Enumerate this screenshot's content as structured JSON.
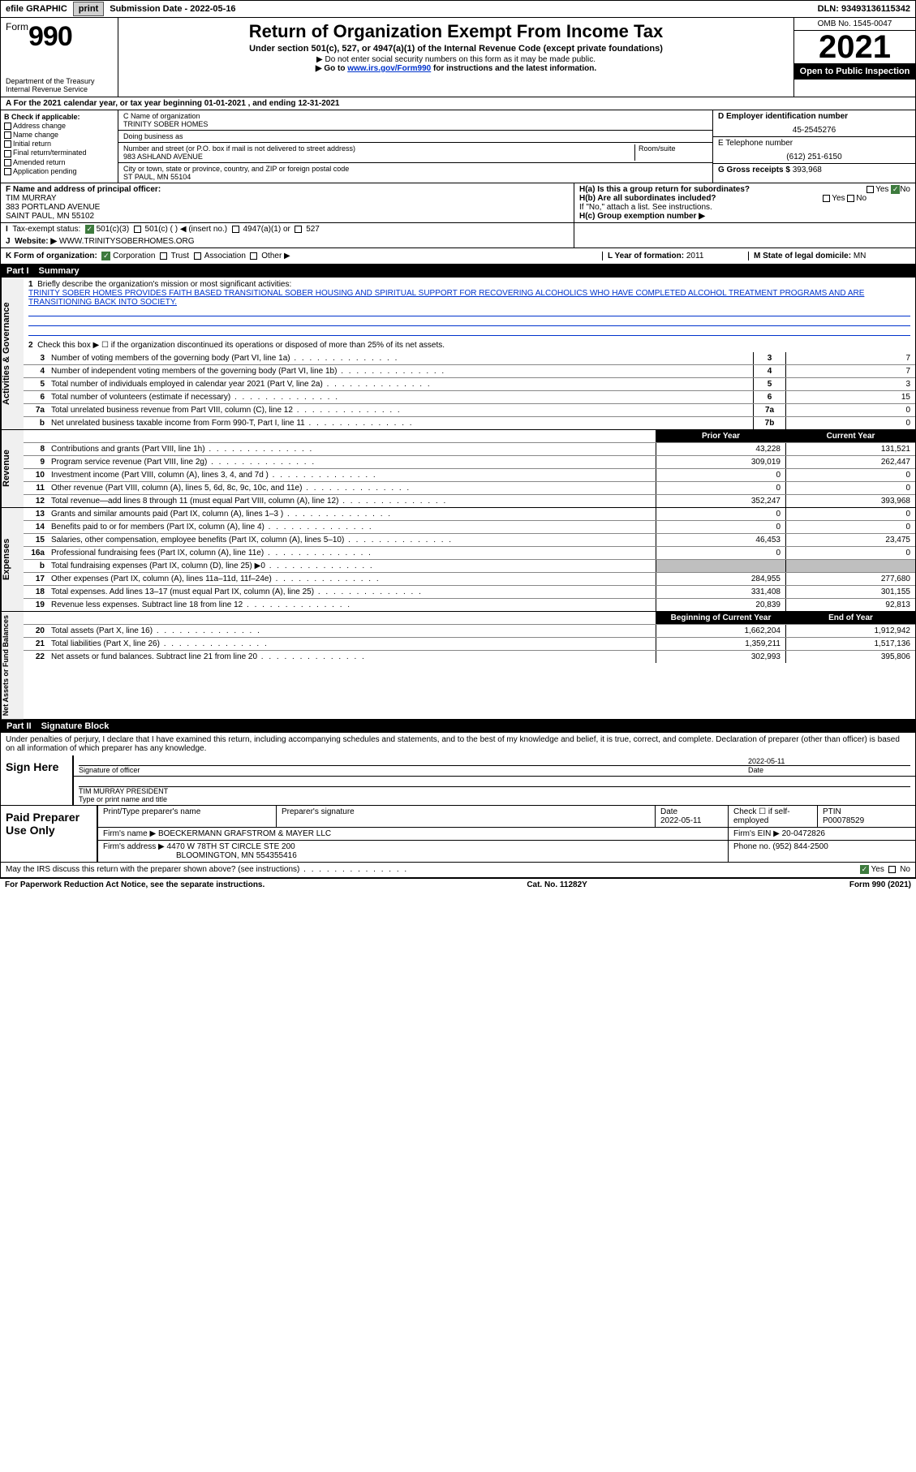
{
  "topbar": {
    "efile": "efile GRAPHIC",
    "print": "print",
    "subdate_lbl": "Submission Date - ",
    "subdate": "2022-05-16",
    "dln_lbl": "DLN: ",
    "dln": "93493136115342"
  },
  "header": {
    "form_word": "Form",
    "form_num": "990",
    "dept": "Department of the Treasury Internal Revenue Service",
    "title": "Return of Organization Exempt From Income Tax",
    "sub": "Under section 501(c), 527, or 4947(a)(1) of the Internal Revenue Code (except private foundations)",
    "note1": "▶ Do not enter social security numbers on this form as it may be made public.",
    "note2_pre": "▶ Go to ",
    "note2_link": "www.irs.gov/Form990",
    "note2_post": " for instructions and the latest information.",
    "omb": "OMB No. 1545-0047",
    "year": "2021",
    "open": "Open to Public Inspection"
  },
  "A": {
    "text": "A For the 2021 calendar year, or tax year beginning 01-01-2021   , and ending 12-31-2021"
  },
  "B": {
    "hdr": "B Check if applicable:",
    "opts": [
      "Address change",
      "Name change",
      "Initial return",
      "Final return/terminated",
      "Amended return",
      "Application pending"
    ]
  },
  "C": {
    "name_lbl": "C Name of organization",
    "name": "TRINITY SOBER HOMES",
    "dba_lbl": "Doing business as",
    "addr_lbl": "Number and street (or P.O. box if mail is not delivered to street address)",
    "room_lbl": "Room/suite",
    "addr": "983 ASHLAND AVENUE",
    "city_lbl": "City or town, state or province, country, and ZIP or foreign postal code",
    "city": "ST PAUL, MN  55104"
  },
  "DEG": {
    "d_lbl": "D Employer identification number",
    "d": "45-2545276",
    "e_lbl": "E Telephone number",
    "e": "(612) 251-6150",
    "g_lbl": "G Gross receipts $ ",
    "g": "393,968"
  },
  "F": {
    "lbl": "F Name and address of principal officer:",
    "name": "TIM MURRAY",
    "addr1": "383 PORTLAND AVENUE",
    "addr2": "SAINT PAUL, MN  55102"
  },
  "H": {
    "a": "H(a)  Is this a group return for subordinates?",
    "b": "H(b)  Are all subordinates included?",
    "bnote": "If \"No,\" attach a list. See instructions.",
    "c": "H(c)  Group exemption number ▶",
    "yes": "Yes",
    "no": "No"
  },
  "I": {
    "lbl": "Tax-exempt status:",
    "o1": "501(c)(3)",
    "o2": "501(c) (   ) ◀ (insert no.)",
    "o3": "4947(a)(1) or",
    "o4": "527"
  },
  "J": {
    "lbl": "Website: ▶",
    "val": "WWW.TRINITYSOBERHOMES.ORG"
  },
  "K": {
    "lbl": "K Form of organization:",
    "opts": [
      "Corporation",
      "Trust",
      "Association",
      "Other ▶"
    ],
    "L_lbl": "L Year of formation: ",
    "L_val": "2011",
    "M_lbl": "M State of legal domicile: ",
    "M_val": "MN"
  },
  "partI": {
    "hdr": "Part I",
    "title": "Summary",
    "l1_lbl": "Briefly describe the organization's mission or most significant activities:",
    "l1_text": "TRINITY SOBER HOMES PROVIDES FAITH BASED TRANSITIONAL SOBER HOUSING AND SPIRITUAL SUPPORT FOR RECOVERING ALCOHOLICS WHO HAVE COMPLETED ALCOHOL TREATMENT PROGRAMS AND ARE TRANSITIONING BACK INTO SOCIETY.",
    "l2": "Check this box ▶ ☐ if the organization discontinued its operations or disposed of more than 25% of its net assets.",
    "gov_lines": [
      {
        "n": "3",
        "t": "Number of voting members of the governing body (Part VI, line 1a)",
        "b": "3",
        "v": "7"
      },
      {
        "n": "4",
        "t": "Number of independent voting members of the governing body (Part VI, line 1b)",
        "b": "4",
        "v": "7"
      },
      {
        "n": "5",
        "t": "Total number of individuals employed in calendar year 2021 (Part V, line 2a)",
        "b": "5",
        "v": "3"
      },
      {
        "n": "6",
        "t": "Total number of volunteers (estimate if necessary)",
        "b": "6",
        "v": "15"
      },
      {
        "n": "7a",
        "t": "Total unrelated business revenue from Part VIII, column (C), line 12",
        "b": "7a",
        "v": "0"
      },
      {
        "n": "b",
        "t": "Net unrelated business taxable income from Form 990-T, Part I, line 11",
        "b": "7b",
        "v": "0"
      }
    ],
    "prior_hdr": "Prior Year",
    "curr_hdr": "Current Year",
    "rev_lines": [
      {
        "n": "8",
        "t": "Contributions and grants (Part VIII, line 1h)",
        "p": "43,228",
        "c": "131,521"
      },
      {
        "n": "9",
        "t": "Program service revenue (Part VIII, line 2g)",
        "p": "309,019",
        "c": "262,447"
      },
      {
        "n": "10",
        "t": "Investment income (Part VIII, column (A), lines 3, 4, and 7d )",
        "p": "0",
        "c": "0"
      },
      {
        "n": "11",
        "t": "Other revenue (Part VIII, column (A), lines 5, 6d, 8c, 9c, 10c, and 11e)",
        "p": "0",
        "c": "0"
      },
      {
        "n": "12",
        "t": "Total revenue—add lines 8 through 11 (must equal Part VIII, column (A), line 12)",
        "p": "352,247",
        "c": "393,968"
      }
    ],
    "exp_lines": [
      {
        "n": "13",
        "t": "Grants and similar amounts paid (Part IX, column (A), lines 1–3 )",
        "p": "0",
        "c": "0"
      },
      {
        "n": "14",
        "t": "Benefits paid to or for members (Part IX, column (A), line 4)",
        "p": "0",
        "c": "0"
      },
      {
        "n": "15",
        "t": "Salaries, other compensation, employee benefits (Part IX, column (A), lines 5–10)",
        "p": "46,453",
        "c": "23,475"
      },
      {
        "n": "16a",
        "t": "Professional fundraising fees (Part IX, column (A), line 11e)",
        "p": "0",
        "c": "0"
      },
      {
        "n": "b",
        "t": "Total fundraising expenses (Part IX, column (D), line 25) ▶0",
        "p": "",
        "c": "",
        "shade": true
      },
      {
        "n": "17",
        "t": "Other expenses (Part IX, column (A), lines 11a–11d, 11f–24e)",
        "p": "284,955",
        "c": "277,680"
      },
      {
        "n": "18",
        "t": "Total expenses. Add lines 13–17 (must equal Part IX, column (A), line 25)",
        "p": "331,408",
        "c": "301,155"
      },
      {
        "n": "19",
        "t": "Revenue less expenses. Subtract line 18 from line 12",
        "p": "20,839",
        "c": "92,813"
      }
    ],
    "na_hdr1": "Beginning of Current Year",
    "na_hdr2": "End of Year",
    "na_lines": [
      {
        "n": "20",
        "t": "Total assets (Part X, line 16)",
        "p": "1,662,204",
        "c": "1,912,942"
      },
      {
        "n": "21",
        "t": "Total liabilities (Part X, line 26)",
        "p": "1,359,211",
        "c": "1,517,136"
      },
      {
        "n": "22",
        "t": "Net assets or fund balances. Subtract line 21 from line 20",
        "p": "302,993",
        "c": "395,806"
      }
    ],
    "gov_label": "Activities & Governance",
    "rev_label": "Revenue",
    "exp_label": "Expenses",
    "na_label": "Net Assets or Fund Balances"
  },
  "partII": {
    "hdr": "Part II",
    "title": "Signature Block",
    "penalty": "Under penalties of perjury, I declare that I have examined this return, including accompanying schedules and statements, and to the best of my knowledge and belief, it is true, correct, and complete. Declaration of preparer (other than officer) is based on all information of which preparer has any knowledge.",
    "sign_here": "Sign Here",
    "sig_lbl": "Signature of officer",
    "date_lbl": "Date",
    "sig_date": "2022-05-11",
    "officer": "TIM MURRAY PRESIDENT",
    "officer_lbl": "Type or print name and title"
  },
  "prep": {
    "title": "Paid Preparer Use Only",
    "h1": "Print/Type preparer's name",
    "h2": "Preparer's signature",
    "h3": "Date",
    "h3v": "2022-05-11",
    "h4": "Check ☐ if self-employed",
    "h5": "PTIN",
    "h5v": "P00078529",
    "firm_lbl": "Firm's name    ▶ ",
    "firm": "BOECKERMANN GRAFSTROM & MAYER LLC",
    "ein_lbl": "Firm's EIN ▶ ",
    "ein": "20-0472826",
    "addr_lbl": "Firm's address ▶ ",
    "addr1": "4470 W 78TH ST CIRCLE STE 200",
    "addr2": "BLOOMINGTON, MN  554355416",
    "phone_lbl": "Phone no. ",
    "phone": "(952) 844-2500"
  },
  "footer": {
    "discuss": "May the IRS discuss this return with the preparer shown above? (see instructions)",
    "paperwork": "For Paperwork Reduction Act Notice, see the separate instructions.",
    "cat": "Cat. No. 11282Y",
    "form": "Form 990 (2021)",
    "yes": "Yes",
    "no": "No"
  }
}
